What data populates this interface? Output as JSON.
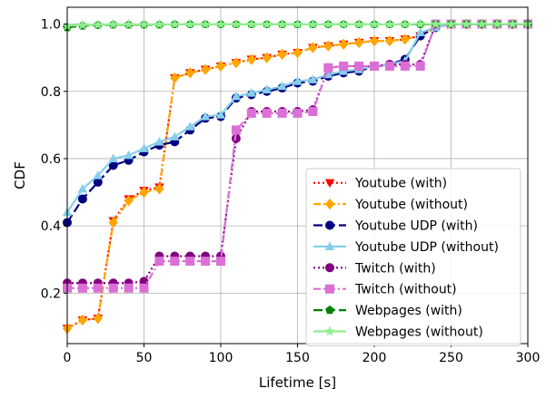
{
  "chart_data": {
    "type": "line",
    "xlabel": "Lifetime [s]",
    "ylabel": "CDF",
    "xlim": [
      0,
      300
    ],
    "ylim": [
      0.05,
      1.05
    ],
    "xticks": [
      0,
      50,
      100,
      150,
      200,
      250,
      300
    ],
    "yticks": [
      0.2,
      0.4,
      0.6,
      0.8,
      1.0
    ],
    "xtick_labels": [
      "0",
      "50",
      "100",
      "150",
      "200",
      "250",
      "300"
    ],
    "ytick_labels": [
      "0.2",
      "0.4",
      "0.6",
      "0.8",
      "1.0"
    ],
    "grid": true,
    "legend_position": "lower-right",
    "series": [
      {
        "name": "Youtube (with)",
        "color": "#ff0000",
        "dash": "2,3",
        "marker": "triangle-down",
        "x": [
          0,
          10,
          20,
          30,
          40,
          50,
          60,
          70,
          80,
          90,
          100,
          110,
          120,
          130,
          140,
          150,
          160,
          170,
          180,
          190,
          200,
          210,
          220,
          230,
          240,
          250,
          260,
          270,
          280,
          290,
          300
        ],
        "y": [
          0.095,
          0.12,
          0.125,
          0.415,
          0.48,
          0.505,
          0.515,
          0.84,
          0.855,
          0.865,
          0.875,
          0.885,
          0.895,
          0.9,
          0.91,
          0.915,
          0.93,
          0.935,
          0.94,
          0.945,
          0.95,
          0.95,
          0.955,
          0.965,
          0.99,
          1.0,
          1.0,
          1.0,
          1.0,
          1.0,
          1.0
        ]
      },
      {
        "name": "Youtube (without)",
        "color": "#ffa500",
        "dash": "8,3,2,3",
        "marker": "diamond",
        "x": [
          0,
          10,
          20,
          30,
          40,
          50,
          60,
          70,
          80,
          90,
          100,
          110,
          120,
          130,
          140,
          150,
          160,
          170,
          180,
          190,
          200,
          210,
          220,
          230,
          240,
          250,
          260,
          270,
          280,
          290,
          300
        ],
        "y": [
          0.095,
          0.12,
          0.125,
          0.41,
          0.475,
          0.5,
          0.51,
          0.84,
          0.855,
          0.865,
          0.875,
          0.885,
          0.895,
          0.9,
          0.91,
          0.915,
          0.93,
          0.935,
          0.94,
          0.945,
          0.95,
          0.95,
          0.955,
          0.965,
          0.99,
          1.0,
          1.0,
          1.0,
          1.0,
          1.0,
          1.0
        ]
      },
      {
        "name": "Youtube UDP (with)",
        "color": "#000080",
        "dash": "10,4",
        "marker": "circle",
        "x": [
          0,
          10,
          20,
          30,
          40,
          50,
          60,
          70,
          80,
          90,
          100,
          110,
          120,
          130,
          140,
          150,
          160,
          170,
          180,
          190,
          200,
          210,
          220,
          230,
          240,
          250,
          260,
          270,
          280,
          290,
          300
        ],
        "y": [
          0.41,
          0.48,
          0.53,
          0.58,
          0.595,
          0.62,
          0.64,
          0.65,
          0.685,
          0.72,
          0.725,
          0.78,
          0.79,
          0.8,
          0.81,
          0.825,
          0.83,
          0.845,
          0.855,
          0.86,
          0.875,
          0.88,
          0.895,
          0.965,
          0.99,
          1.0,
          1.0,
          1.0,
          1.0,
          1.0,
          1.0
        ]
      },
      {
        "name": "Youtube UDP (without)",
        "color": "#87ceeb",
        "dash": "",
        "marker": "triangle-up",
        "x": [
          0,
          10,
          20,
          30,
          40,
          50,
          60,
          70,
          80,
          90,
          100,
          110,
          120,
          130,
          140,
          150,
          160,
          170,
          180,
          190,
          200,
          210,
          220,
          230,
          240,
          250,
          260,
          270,
          280,
          290,
          300
        ],
        "y": [
          0.44,
          0.51,
          0.55,
          0.6,
          0.61,
          0.63,
          0.65,
          0.665,
          0.695,
          0.725,
          0.73,
          0.785,
          0.795,
          0.805,
          0.815,
          0.83,
          0.835,
          0.85,
          0.86,
          0.865,
          0.875,
          0.88,
          0.89,
          0.975,
          0.99,
          1.0,
          1.0,
          1.0,
          1.0,
          1.0,
          1.0
        ]
      },
      {
        "name": "Twitch (with)",
        "color": "#800080",
        "dash": "2,3",
        "marker": "circle",
        "x": [
          0,
          10,
          20,
          30,
          40,
          50,
          60,
          70,
          80,
          90,
          100,
          110,
          120,
          130,
          140,
          150,
          160,
          170,
          180,
          190,
          200,
          210,
          220,
          230,
          240,
          250,
          260,
          270,
          280,
          290,
          300
        ],
        "y": [
          0.23,
          0.23,
          0.23,
          0.23,
          0.23,
          0.235,
          0.31,
          0.31,
          0.31,
          0.31,
          0.31,
          0.66,
          0.74,
          0.74,
          0.74,
          0.74,
          0.745,
          0.87,
          0.875,
          0.875,
          0.875,
          0.88,
          0.88,
          0.88,
          1.0,
          1.0,
          1.0,
          1.0,
          1.0,
          1.0,
          1.0
        ]
      },
      {
        "name": "Twitch (without)",
        "color": "#da70d6",
        "dash": "8,3,2,3",
        "marker": "square",
        "x": [
          0,
          10,
          20,
          30,
          40,
          50,
          60,
          70,
          80,
          90,
          100,
          110,
          120,
          130,
          140,
          150,
          160,
          170,
          180,
          190,
          200,
          210,
          220,
          230,
          240,
          250,
          260,
          270,
          280,
          290,
          300
        ],
        "y": [
          0.215,
          0.215,
          0.215,
          0.215,
          0.215,
          0.215,
          0.295,
          0.295,
          0.295,
          0.295,
          0.295,
          0.685,
          0.735,
          0.735,
          0.735,
          0.735,
          0.74,
          0.87,
          0.875,
          0.875,
          0.875,
          0.875,
          0.875,
          0.875,
          1.0,
          1.0,
          1.0,
          1.0,
          1.0,
          1.0,
          1.0
        ]
      },
      {
        "name": "Webpages (with)",
        "color": "#008000",
        "dash": "10,4",
        "marker": "pentagon",
        "x": [
          0,
          10,
          20,
          30,
          40,
          50,
          60,
          70,
          80,
          90,
          100,
          110,
          120,
          130,
          140,
          150,
          160,
          170,
          180,
          190,
          200,
          210,
          220,
          230,
          240,
          250,
          260,
          270,
          280,
          290,
          300
        ],
        "y": [
          0.99,
          0.995,
          0.997,
          0.998,
          0.998,
          0.998,
          0.998,
          0.999,
          0.999,
          0.999,
          0.999,
          0.999,
          0.999,
          0.999,
          0.999,
          0.999,
          0.999,
          0.999,
          0.999,
          0.999,
          0.999,
          0.999,
          0.999,
          0.999,
          1.0,
          1.0,
          1.0,
          1.0,
          1.0,
          1.0,
          1.0
        ]
      },
      {
        "name": "Webpages (without)",
        "color": "#90ee90",
        "dash": "",
        "marker": "star",
        "x": [
          0,
          10,
          20,
          30,
          40,
          50,
          60,
          70,
          80,
          90,
          100,
          110,
          120,
          130,
          140,
          150,
          160,
          170,
          180,
          190,
          200,
          210,
          220,
          230,
          240,
          250,
          260,
          270,
          280,
          290,
          300
        ],
        "y": [
          0.995,
          0.997,
          0.998,
          0.999,
          0.999,
          0.999,
          0.999,
          0.999,
          0.999,
          0.999,
          0.999,
          0.999,
          0.999,
          0.999,
          0.999,
          0.999,
          0.999,
          0.999,
          0.999,
          0.999,
          0.999,
          0.999,
          0.999,
          1.0,
          1.0,
          1.0,
          1.0,
          1.0,
          1.0,
          1.0,
          1.0
        ]
      }
    ]
  }
}
